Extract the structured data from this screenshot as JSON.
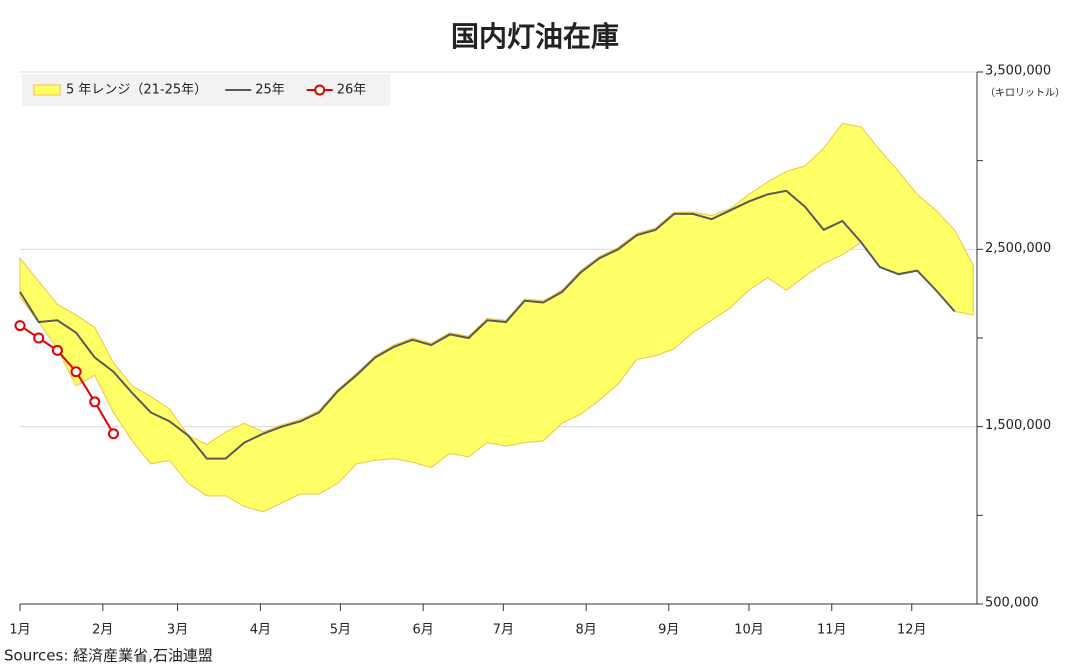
{
  "chart_data": {
    "type": "line",
    "title": "国内灯油在庫",
    "y_unit": "（キロリットル）",
    "source": "Sources: 経済産業省,石油連盟",
    "x": [
      1,
      2,
      3,
      4,
      5,
      6,
      7,
      8,
      9,
      10,
      11,
      12,
      13,
      14,
      15,
      16,
      17,
      18,
      19,
      20,
      21,
      22,
      23,
      24,
      25,
      26,
      27,
      28,
      29,
      30,
      31,
      32,
      33,
      34,
      35,
      36,
      37,
      38,
      39,
      40,
      41,
      42,
      43,
      44,
      45,
      46,
      47,
      48,
      49,
      50,
      51,
      52
    ],
    "xlim": [
      1,
      52.2
    ],
    "xticks": [
      {
        "value": 1,
        "label": "1月"
      },
      {
        "value": 5.43,
        "label": "2月"
      },
      {
        "value": 9.43,
        "label": "3月"
      },
      {
        "value": 13.86,
        "label": "4月"
      },
      {
        "value": 18.14,
        "label": "5月"
      },
      {
        "value": 22.57,
        "label": "6月"
      },
      {
        "value": 26.86,
        "label": "7月"
      },
      {
        "value": 31.29,
        "label": "8月"
      },
      {
        "value": 35.71,
        "label": "9月"
      },
      {
        "value": 40,
        "label": "10月"
      },
      {
        "value": 44.43,
        "label": "11月"
      },
      {
        "value": 48.71,
        "label": "12月"
      }
    ],
    "ylim": [
      500000,
      3500000
    ],
    "yticks": [
      {
        "value": 500000,
        "label": "500,000"
      },
      {
        "value": 1500000,
        "label": "1,500,000"
      },
      {
        "value": 2500000,
        "label": "2,500,000"
      },
      {
        "value": 3500000,
        "label": "3,500,000"
      }
    ],
    "minor_yticks": [
      1000000,
      2000000,
      3000000
    ],
    "grid": true,
    "legend": "top-left",
    "range_series": {
      "name": "5 年レンジ（21-25年）",
      "color": "#ffff66",
      "edge_color": "#f2c14a",
      "high": [
        2450000,
        2320000,
        2190000,
        2130000,
        2060000,
        1860000,
        1730000,
        1670000,
        1600000,
        1450000,
        1400000,
        1470000,
        1520000,
        1470000,
        1510000,
        1540000,
        1590000,
        1710000,
        1800000,
        1900000,
        1960000,
        2000000,
        1970000,
        2030000,
        2010000,
        2110000,
        2100000,
        2220000,
        2210000,
        2270000,
        2380000,
        2460000,
        2510000,
        2590000,
        2620000,
        2710000,
        2710000,
        2690000,
        2730000,
        2810000,
        2880000,
        2940000,
        2970000,
        3070000,
        3210000,
        3190000,
        3060000,
        2940000,
        2810000,
        2720000,
        2610000,
        2410000
      ],
      "low": [
        2230000,
        2090000,
        1940000,
        1730000,
        1790000,
        1580000,
        1420000,
        1290000,
        1310000,
        1180000,
        1110000,
        1110000,
        1050000,
        1020000,
        1070000,
        1120000,
        1120000,
        1180000,
        1290000,
        1310000,
        1320000,
        1300000,
        1270000,
        1350000,
        1330000,
        1410000,
        1390000,
        1410000,
        1420000,
        1520000,
        1570000,
        1650000,
        1740000,
        1880000,
        1900000,
        1940000,
        2030000,
        2100000,
        2170000,
        2270000,
        2340000,
        2270000,
        2350000,
        2420000,
        2470000,
        2540000,
        2400000,
        2360000,
        2380000,
        2270000,
        2150000,
        2130000
      ]
    },
    "series": [
      {
        "name": "25年",
        "color": "#595959",
        "marker": false,
        "values": [
          2260000,
          2090000,
          2100000,
          2030000,
          1890000,
          1810000,
          1690000,
          1580000,
          1530000,
          1450000,
          1320000,
          1320000,
          1410000,
          1460000,
          1500000,
          1530000,
          1580000,
          1700000,
          1790000,
          1890000,
          1950000,
          1990000,
          1960000,
          2020000,
          2000000,
          2100000,
          2090000,
          2210000,
          2200000,
          2260000,
          2370000,
          2450000,
          2500000,
          2580000,
          2610000,
          2700000,
          2700000,
          2670000,
          2720000,
          2770000,
          2810000,
          2830000,
          2740000,
          2610000,
          2660000,
          2540000,
          2400000,
          2360000,
          2380000,
          2270000,
          2150000,
          null
        ]
      },
      {
        "name": "26年",
        "color": "#e00000",
        "marker": true,
        "values": [
          2070000,
          2000000,
          1930000,
          1810000,
          1640000,
          1460000,
          null,
          null,
          null,
          null,
          null,
          null,
          null,
          null,
          null,
          null,
          null,
          null,
          null,
          null,
          null,
          null,
          null,
          null,
          null,
          null,
          null,
          null,
          null,
          null,
          null,
          null,
          null,
          null,
          null,
          null,
          null,
          null,
          null,
          null,
          null,
          null,
          null,
          null,
          null,
          null,
          null,
          null,
          null,
          null,
          null,
          null
        ]
      }
    ]
  }
}
